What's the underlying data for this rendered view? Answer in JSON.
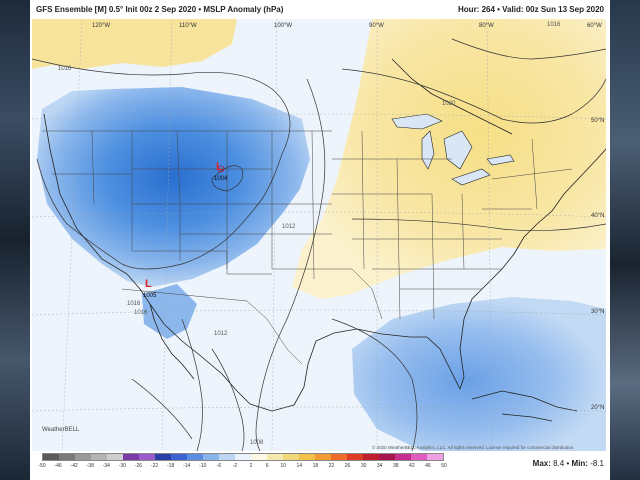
{
  "header": {
    "title": "GFS Ensemble [M] 0.5° Init 00z 2 Sep 2020 • MSLP Anomaly (hPa)",
    "valid": "Hour: 264 • Valid: 00z Sun 13 Sep 2020"
  },
  "longitude_labels": [
    "120°W",
    "110°W",
    "100°W",
    "90°W",
    "80°W",
    "60°W"
  ],
  "latitude_labels": [
    "50°N",
    "40°N",
    "30°N",
    "20°N"
  ],
  "isobar_labels": [
    "1016",
    "1016",
    "1020",
    "1012",
    "1012",
    "1008",
    "1016",
    "1016"
  ],
  "lows": [
    {
      "letter": "L",
      "value": "1004"
    },
    {
      "letter": "L",
      "value": "1005"
    }
  ],
  "colorbar": {
    "tick_labels": [
      "-50",
      "-46",
      "-42",
      "-38",
      "-34",
      "-30",
      "-26",
      "-22",
      "-18",
      "-14",
      "-10",
      "-6",
      "-2",
      "2",
      "6",
      "10",
      "14",
      "18",
      "22",
      "26",
      "30",
      "34",
      "38",
      "42",
      "46",
      "50"
    ],
    "colors": [
      "#5a5a5a",
      "#7a7a7a",
      "#9a9a9a",
      "#b4b4b4",
      "#cfcfcf",
      "#7a3aa8",
      "#9b59c9",
      "#2a3fa8",
      "#3d63d3",
      "#5b8ee0",
      "#89b4ec",
      "#bcd6f3",
      "#eaf2fb",
      "#fdf9e6",
      "#f7eab0",
      "#f2d77a",
      "#f2c24a",
      "#f49a32",
      "#ee6b2a",
      "#dd3b23",
      "#c01d2a",
      "#a8154c",
      "#c72e8e",
      "#e05cbf",
      "#efa0e0"
    ],
    "max_label": "Max:",
    "max_value": "8.4",
    "separator": "•",
    "min_label": "Min:",
    "min_value": "-8.1"
  },
  "copyright": "© 2020 WeatherBELL Analytics, LLC. All rights reserved. License required for commercial distribution.",
  "logo_text": "WeatherBELL"
}
